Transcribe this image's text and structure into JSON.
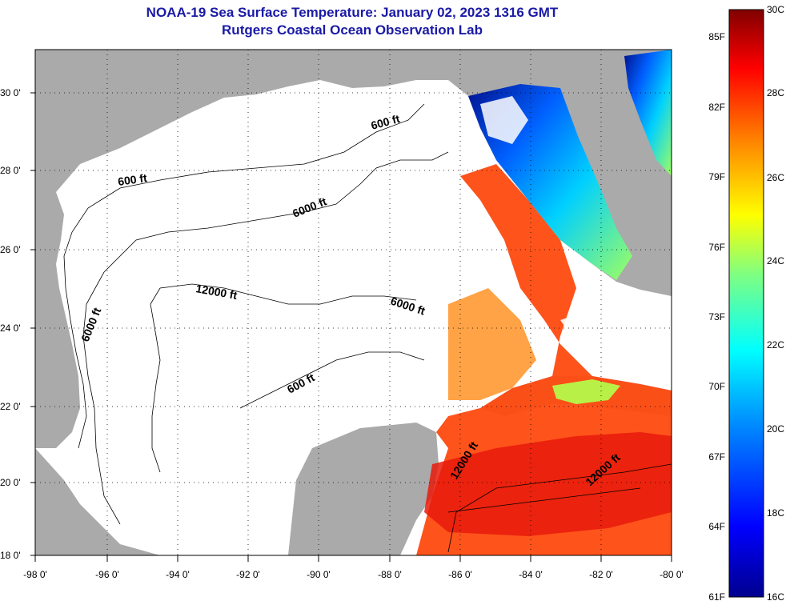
{
  "title_line1": "NOAA-19 Sea Surface Temperature:  January 02, 2023 1316 GMT",
  "title_line2": "Rutgers Coastal Ocean Observation Lab",
  "lat_labels": [
    "30 0'",
    "28 0'",
    "26 0'",
    "24 0'",
    "22 0'",
    "20 0'",
    "18 0'"
  ],
  "lon_labels": [
    "-98 0'",
    "-96 0'",
    "-94 0'",
    "-92 0'",
    "-90 0'",
    "-88 0'",
    "-86 0'",
    "-84 0'",
    "-82 0'",
    "-80 0'"
  ],
  "contours": [
    {
      "label": "600 ft"
    },
    {
      "label": "600 ft"
    },
    {
      "label": "6000 ft"
    },
    {
      "label": "12000 ft"
    },
    {
      "label": "6000 ft"
    },
    {
      "label": "6000 ft"
    },
    {
      "label": "600 ft"
    },
    {
      "label": "12000 ft"
    },
    {
      "label": "12000 ft"
    }
  ],
  "colorbar": {
    "fahrenheit": [
      "85F",
      "82F",
      "79F",
      "76F",
      "73F",
      "70F",
      "67F",
      "64F",
      "61F"
    ],
    "celsius": [
      "30C",
      "28C",
      "26C",
      "24C",
      "22C",
      "20C",
      "18C",
      "16C"
    ]
  },
  "colors": {
    "land": "#aaaaaa",
    "water_nodata": "#ffffff",
    "title": "#1a1aa6"
  }
}
